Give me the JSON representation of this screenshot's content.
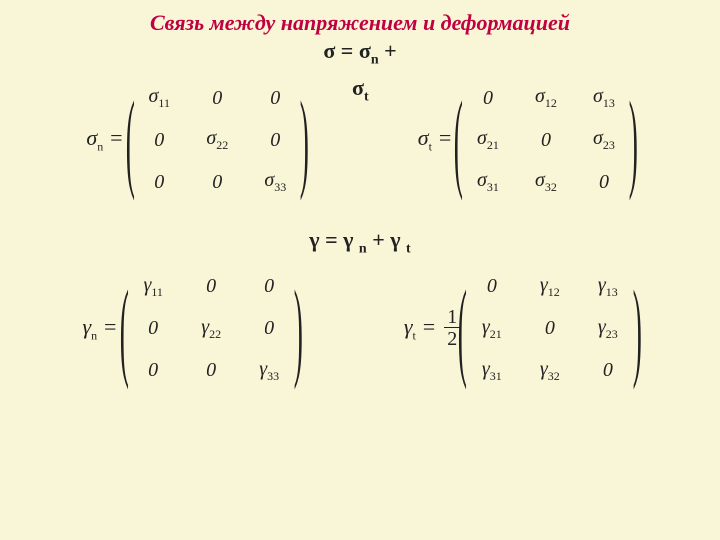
{
  "title": "Связь между напряжением и деформацией",
  "eq1_line1": "σ = σ",
  "eq1_sub1": "n",
  "eq1_plus": " +",
  "sigt_label_sym": "σ",
  "sigt_label_sub": "t",
  "sigma_n": {
    "lhs_sym": "σ",
    "lhs_sub": "n",
    "eq": " =",
    "m": [
      [
        "σ",
        "11",
        "0",
        "",
        "0",
        ""
      ],
      [
        "0",
        "",
        "σ",
        "22",
        "0",
        ""
      ],
      [
        "0",
        "",
        "0",
        "",
        "σ",
        "33"
      ]
    ]
  },
  "sigma_t": {
    "lhs_sym": "σ",
    "lhs_sub": "t",
    "eq": " =",
    "m": [
      [
        "0",
        "",
        "σ",
        "12",
        "σ",
        "13"
      ],
      [
        "σ",
        "21",
        "0",
        "",
        "σ",
        "23"
      ],
      [
        "σ",
        "31",
        "σ",
        "32",
        "0",
        ""
      ]
    ]
  },
  "eq2_g": "γ",
  "eq2_e": " = ",
  "eq2_gn": "γ ",
  "eq2_sn": "n",
  "eq2_p": " + ",
  "eq2_gt": "γ ",
  "eq2_st": "t",
  "gamma_n": {
    "lhs_sym": "γ",
    "lhs_sub": "n",
    "eq": " =",
    "m": [
      [
        "γ",
        "11",
        "0",
        "",
        "0",
        ""
      ],
      [
        "0",
        "",
        "γ",
        "22",
        "0",
        ""
      ],
      [
        "0",
        "",
        "0",
        "",
        "γ",
        "33"
      ]
    ]
  },
  "gamma_t": {
    "lhs_sym": "γ",
    "lhs_sub": "t",
    "eq": " =",
    "frac_n": "1",
    "frac_d": "2",
    "m": [
      [
        "0",
        "",
        "γ",
        "12",
        "γ",
        "13"
      ],
      [
        "γ",
        "21",
        "0",
        "",
        "γ",
        "23"
      ],
      [
        "γ",
        "31",
        "γ",
        "32",
        "0",
        ""
      ]
    ]
  }
}
